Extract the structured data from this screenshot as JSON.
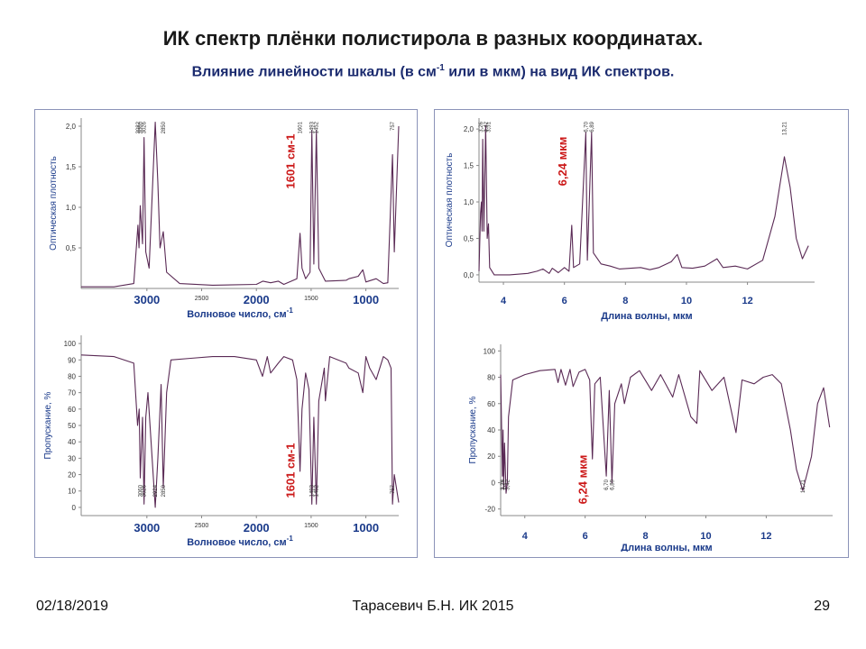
{
  "title": "ИК спектр плёнки полистирола в разных координатах.",
  "subtitle_pre": "Влияние линейности шкалы (в см",
  "subtitle_sup": "-1",
  "subtitle_post": " или в мкм) на вид ИК спектров.",
  "footer": {
    "date": "02/18/2019",
    "author": "Тарасевич Б.Н.  ИК 2015",
    "page": "29"
  },
  "colors": {
    "spectrum": "#5a2a55",
    "axis_text": "#1a3a8a",
    "annotation": "#cc1a1a",
    "title": "#1a2a6e"
  },
  "chart_data": [
    {
      "id": "absorbance_wavenumber",
      "type": "line",
      "ylabel": "Оптическая плотность",
      "xlabel": "Волновое число, см",
      "xlabel_sup": "-1",
      "x_reversed": true,
      "xlim": [
        3600,
        700
      ],
      "ylim": [
        0,
        2.1
      ],
      "yticks": [
        "0,5",
        "1,0",
        "1,5",
        "2,0"
      ],
      "ytick_values": [
        0.5,
        1.0,
        1.5,
        2.0
      ],
      "xticks_big": [
        "3000",
        "2000",
        "1000"
      ],
      "xtick_big_values": [
        3000,
        2000,
        1000
      ],
      "xticks_small": [
        "2500",
        "1500"
      ],
      "xtick_small_values": [
        2500,
        1500
      ],
      "annotation": "1601 см-1",
      "annotation_x": 1601,
      "peak_labels": [
        "3082",
        "3060",
        "3026",
        "2850",
        "1601",
        "1493",
        "1452",
        "757"
      ],
      "series": [
        {
          "points": [
            [
              3600,
              0.02
            ],
            [
              3300,
              0.02
            ],
            [
              3120,
              0.06
            ],
            [
              3082,
              0.78
            ],
            [
              3072,
              0.5
            ],
            [
              3060,
              1.02
            ],
            [
              3040,
              0.55
            ],
            [
              3026,
              1.86
            ],
            [
              3010,
              0.45
            ],
            [
              2980,
              0.25
            ],
            [
              2924,
              2.05
            ],
            [
              2900,
              1.3
            ],
            [
              2880,
              0.5
            ],
            [
              2850,
              0.7
            ],
            [
              2820,
              0.2
            ],
            [
              2700,
              0.06
            ],
            [
              2400,
              0.04
            ],
            [
              2000,
              0.05
            ],
            [
              1940,
              0.09
            ],
            [
              1870,
              0.07
            ],
            [
              1800,
              0.09
            ],
            [
              1750,
              0.05
            ],
            [
              1630,
              0.12
            ],
            [
              1601,
              0.68
            ],
            [
              1583,
              0.25
            ],
            [
              1550,
              0.12
            ],
            [
              1510,
              0.2
            ],
            [
              1493,
              1.95
            ],
            [
              1475,
              0.3
            ],
            [
              1452,
              1.95
            ],
            [
              1430,
              0.25
            ],
            [
              1370,
              0.09
            ],
            [
              1180,
              0.1
            ],
            [
              1155,
              0.12
            ],
            [
              1070,
              0.15
            ],
            [
              1028,
              0.23
            ],
            [
              1000,
              0.08
            ],
            [
              906,
              0.12
            ],
            [
              840,
              0.06
            ],
            [
              800,
              0.07
            ],
            [
              757,
              1.65
            ],
            [
              740,
              0.45
            ],
            [
              700,
              2.0
            ]
          ]
        }
      ]
    },
    {
      "id": "absorbance_wavelength",
      "type": "line",
      "ylabel": "Оптическая плотность",
      "xlabel": "Длина волны, мкм",
      "xlim": [
        3.2,
        14.2
      ],
      "ylim": [
        -0.1,
        2.15
      ],
      "yticks": [
        "0,0",
        "0,5",
        "1,0",
        "1,5",
        "2,0"
      ],
      "ytick_values": [
        0.0,
        0.5,
        1.0,
        1.5,
        2.0
      ],
      "xticks": [
        "4",
        "6",
        "8",
        "10",
        "12"
      ],
      "xtick_values": [
        4,
        6,
        8,
        10,
        12
      ],
      "annotation": "6,24 мкм",
      "annotation_x": 6.24,
      "peak_labels": [
        "3,26",
        "3,42",
        "3,51",
        "6,70",
        "6,89",
        "13,21"
      ],
      "series": [
        {
          "points": [
            [
              3.2,
              0.05
            ],
            [
              3.25,
              0.85
            ],
            [
              3.28,
              1.0
            ],
            [
              3.3,
              0.6
            ],
            [
              3.32,
              1.86
            ],
            [
              3.36,
              0.6
            ],
            [
              3.42,
              2.05
            ],
            [
              3.47,
              0.5
            ],
            [
              3.51,
              0.7
            ],
            [
              3.55,
              0.1
            ],
            [
              3.7,
              0.0
            ],
            [
              4.2,
              0.0
            ],
            [
              4.8,
              0.02
            ],
            [
              5.1,
              0.05
            ],
            [
              5.3,
              0.08
            ],
            [
              5.5,
              0.02
            ],
            [
              5.6,
              0.09
            ],
            [
              5.8,
              0.03
            ],
            [
              6.0,
              0.1
            ],
            [
              6.15,
              0.05
            ],
            [
              6.24,
              0.68
            ],
            [
              6.3,
              0.1
            ],
            [
              6.5,
              0.15
            ],
            [
              6.7,
              1.95
            ],
            [
              6.75,
              0.2
            ],
            [
              6.89,
              1.95
            ],
            [
              6.95,
              0.3
            ],
            [
              7.2,
              0.15
            ],
            [
              7.5,
              0.12
            ],
            [
              7.8,
              0.08
            ],
            [
              8.5,
              0.1
            ],
            [
              8.8,
              0.07
            ],
            [
              9.1,
              0.1
            ],
            [
              9.5,
              0.18
            ],
            [
              9.7,
              0.28
            ],
            [
              9.85,
              0.1
            ],
            [
              10.2,
              0.09
            ],
            [
              10.6,
              0.12
            ],
            [
              11.0,
              0.22
            ],
            [
              11.2,
              0.1
            ],
            [
              11.6,
              0.12
            ],
            [
              12.0,
              0.08
            ],
            [
              12.5,
              0.2
            ],
            [
              12.9,
              0.8
            ],
            [
              13.21,
              1.62
            ],
            [
              13.4,
              1.2
            ],
            [
              13.6,
              0.5
            ],
            [
              13.8,
              0.22
            ],
            [
              14.0,
              0.4
            ]
          ]
        }
      ]
    },
    {
      "id": "transmittance_wavenumber",
      "type": "line",
      "ylabel": "Пропускание, %",
      "xlabel": "Волновое число, см",
      "xlabel_sup": "-1",
      "x_reversed": true,
      "xlim": [
        3600,
        700
      ],
      "ylim": [
        -5,
        105
      ],
      "yticks": [
        "0",
        "10",
        "20",
        "30",
        "40",
        "50",
        "60",
        "70",
        "80",
        "90",
        "100"
      ],
      "ytick_values": [
        0,
        10,
        20,
        30,
        40,
        50,
        60,
        70,
        80,
        90,
        100
      ],
      "xticks_big": [
        "3000",
        "2000",
        "1000"
      ],
      "xtick_big_values": [
        3000,
        2000,
        1000
      ],
      "xticks_small": [
        "2500",
        "1500"
      ],
      "xtick_small_values": [
        2500,
        1500
      ],
      "annotation": "1601 см-1",
      "annotation_x": 1601,
      "peak_labels": [
        "3060",
        "3026",
        "2924",
        "2850",
        "1493",
        "1452",
        "757"
      ],
      "series": [
        {
          "points": [
            [
              3600,
              93
            ],
            [
              3300,
              92
            ],
            [
              3120,
              88
            ],
            [
              3085,
              50
            ],
            [
              3070,
              60
            ],
            [
              3060,
              18
            ],
            [
              3040,
              55
            ],
            [
              3026,
              2
            ],
            [
              3010,
              55
            ],
            [
              2990,
              70
            ],
            [
              2924,
              0
            ],
            [
              2900,
              30
            ],
            [
              2870,
              75
            ],
            [
              2850,
              12
            ],
            [
              2820,
              70
            ],
            [
              2780,
              90
            ],
            [
              2600,
              91
            ],
            [
              2400,
              92
            ],
            [
              2200,
              92
            ],
            [
              2000,
              90
            ],
            [
              1944,
              80
            ],
            [
              1900,
              92
            ],
            [
              1870,
              82
            ],
            [
              1800,
              88
            ],
            [
              1750,
              92
            ],
            [
              1670,
              90
            ],
            [
              1630,
              78
            ],
            [
              1601,
              22
            ],
            [
              1583,
              60
            ],
            [
              1550,
              82
            ],
            [
              1520,
              72
            ],
            [
              1493,
              2
            ],
            [
              1475,
              55
            ],
            [
              1452,
              2
            ],
            [
              1430,
              65
            ],
            [
              1380,
              85
            ],
            [
              1370,
              65
            ],
            [
              1330,
              92
            ],
            [
              1180,
              88
            ],
            [
              1155,
              85
            ],
            [
              1070,
              82
            ],
            [
              1028,
              70
            ],
            [
              1000,
              92
            ],
            [
              965,
              85
            ],
            [
              906,
              78
            ],
            [
              840,
              92
            ],
            [
              800,
              90
            ],
            [
              770,
              85
            ],
            [
              757,
              2
            ],
            [
              740,
              20
            ],
            [
              700,
              3
            ]
          ]
        }
      ]
    },
    {
      "id": "transmittance_wavelength",
      "type": "line",
      "ylabel": "Пропускание, %",
      "xlabel": "Длина волны, мкм",
      "xlim": [
        3.2,
        14.2
      ],
      "ylim": [
        -25,
        105
      ],
      "yticks": [
        "-20",
        "0",
        "20",
        "40",
        "60",
        "80",
        "100"
      ],
      "ytick_values": [
        -20,
        0,
        20,
        40,
        60,
        80,
        100
      ],
      "xticks": [
        "4",
        "6",
        "8",
        "10",
        "12"
      ],
      "xtick_values": [
        4,
        6,
        8,
        10,
        12
      ],
      "annotation": "6,24 мкм",
      "annotation_x": 6.24,
      "peak_labels": [
        "3,26",
        "3,27",
        "3,42",
        "6,70",
        "6,89",
        "13,21"
      ],
      "series": [
        {
          "points": [
            [
              3.2,
              82
            ],
            [
              3.26,
              5
            ],
            [
              3.28,
              40
            ],
            [
              3.3,
              -5
            ],
            [
              3.33,
              30
            ],
            [
              3.38,
              -8
            ],
            [
              3.42,
              0
            ],
            [
              3.46,
              50
            ],
            [
              3.6,
              78
            ],
            [
              4.0,
              82
            ],
            [
              4.5,
              85
            ],
            [
              5.0,
              86
            ],
            [
              5.1,
              76
            ],
            [
              5.2,
              86
            ],
            [
              5.35,
              74
            ],
            [
              5.5,
              86
            ],
            [
              5.6,
              73
            ],
            [
              5.8,
              84
            ],
            [
              6.0,
              86
            ],
            [
              6.15,
              78
            ],
            [
              6.24,
              18
            ],
            [
              6.32,
              75
            ],
            [
              6.5,
              80
            ],
            [
              6.7,
              5
            ],
            [
              6.8,
              70
            ],
            [
              6.89,
              0
            ],
            [
              6.98,
              60
            ],
            [
              7.2,
              75
            ],
            [
              7.3,
              60
            ],
            [
              7.5,
              80
            ],
            [
              7.8,
              85
            ],
            [
              8.2,
              70
            ],
            [
              8.5,
              82
            ],
            [
              8.9,
              65
            ],
            [
              9.1,
              82
            ],
            [
              9.5,
              50
            ],
            [
              9.7,
              45
            ],
            [
              9.8,
              85
            ],
            [
              10.2,
              70
            ],
            [
              10.6,
              80
            ],
            [
              11.0,
              38
            ],
            [
              11.2,
              78
            ],
            [
              11.6,
              75
            ],
            [
              11.9,
              80
            ],
            [
              12.2,
              82
            ],
            [
              12.5,
              75
            ],
            [
              12.8,
              40
            ],
            [
              13.0,
              10
            ],
            [
              13.21,
              -6
            ],
            [
              13.5,
              20
            ],
            [
              13.7,
              60
            ],
            [
              13.9,
              72
            ],
            [
              14.1,
              42
            ]
          ]
        }
      ]
    }
  ]
}
